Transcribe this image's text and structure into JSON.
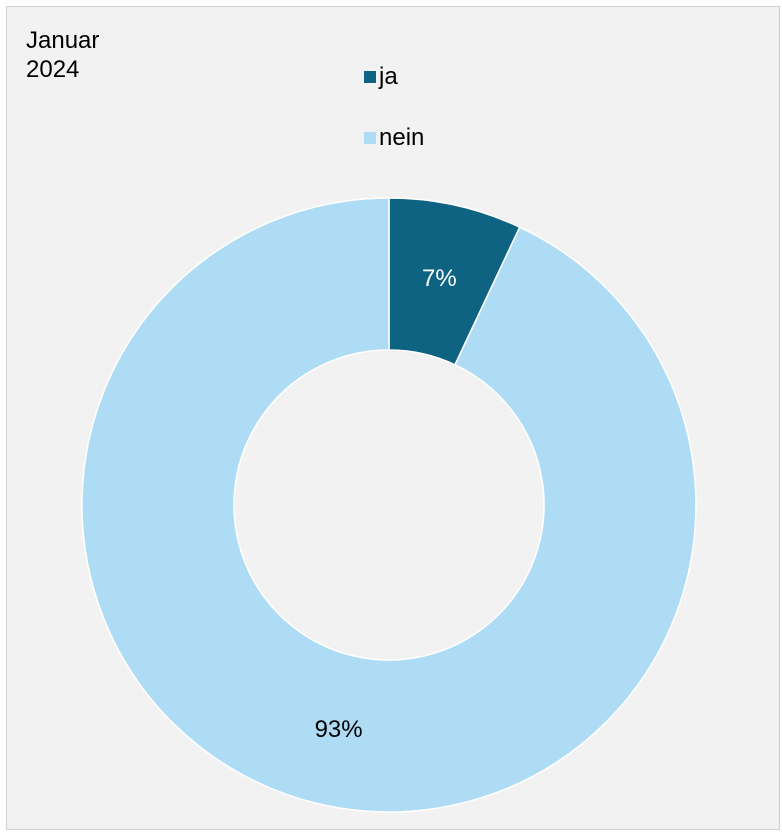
{
  "chart_data": {
    "type": "pie",
    "variant": "donut",
    "title": "Januar\n2024",
    "categories": [
      "ja",
      "nein"
    ],
    "values": [
      7,
      93
    ],
    "unit": "%",
    "labels": [
      "7%",
      "93%"
    ],
    "colors": [
      "#0f6382",
      "#afdcf5"
    ],
    "label_colors": [
      "#ffffff",
      "#000000"
    ],
    "legend_position": "top-center"
  }
}
